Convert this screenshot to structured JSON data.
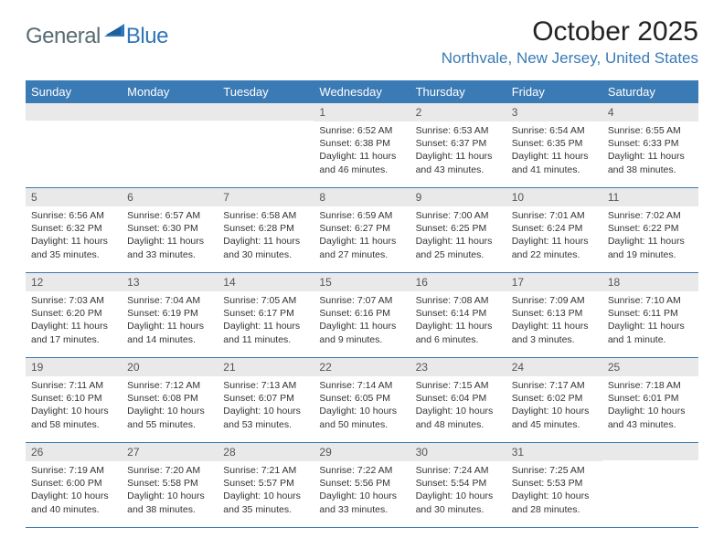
{
  "logo": {
    "general": "General",
    "blue": "Blue"
  },
  "title": "October 2025",
  "location": "Northvale, New Jersey, United States",
  "colors": {
    "header_bg": "#3a7ab5",
    "header_text": "#ffffff",
    "daynum_bg": "#e9e9e9",
    "location_text": "#3a7ab5",
    "body_text": "#333333",
    "border": "#3a7ab5"
  },
  "weekdays": [
    "Sunday",
    "Monday",
    "Tuesday",
    "Wednesday",
    "Thursday",
    "Friday",
    "Saturday"
  ],
  "weeks": [
    [
      null,
      null,
      null,
      {
        "n": "1",
        "sr": "6:52 AM",
        "ss": "6:38 PM",
        "dl": "11 hours and 46 minutes."
      },
      {
        "n": "2",
        "sr": "6:53 AM",
        "ss": "6:37 PM",
        "dl": "11 hours and 43 minutes."
      },
      {
        "n": "3",
        "sr": "6:54 AM",
        "ss": "6:35 PM",
        "dl": "11 hours and 41 minutes."
      },
      {
        "n": "4",
        "sr": "6:55 AM",
        "ss": "6:33 PM",
        "dl": "11 hours and 38 minutes."
      }
    ],
    [
      {
        "n": "5",
        "sr": "6:56 AM",
        "ss": "6:32 PM",
        "dl": "11 hours and 35 minutes."
      },
      {
        "n": "6",
        "sr": "6:57 AM",
        "ss": "6:30 PM",
        "dl": "11 hours and 33 minutes."
      },
      {
        "n": "7",
        "sr": "6:58 AM",
        "ss": "6:28 PM",
        "dl": "11 hours and 30 minutes."
      },
      {
        "n": "8",
        "sr": "6:59 AM",
        "ss": "6:27 PM",
        "dl": "11 hours and 27 minutes."
      },
      {
        "n": "9",
        "sr": "7:00 AM",
        "ss": "6:25 PM",
        "dl": "11 hours and 25 minutes."
      },
      {
        "n": "10",
        "sr": "7:01 AM",
        "ss": "6:24 PM",
        "dl": "11 hours and 22 minutes."
      },
      {
        "n": "11",
        "sr": "7:02 AM",
        "ss": "6:22 PM",
        "dl": "11 hours and 19 minutes."
      }
    ],
    [
      {
        "n": "12",
        "sr": "7:03 AM",
        "ss": "6:20 PM",
        "dl": "11 hours and 17 minutes."
      },
      {
        "n": "13",
        "sr": "7:04 AM",
        "ss": "6:19 PM",
        "dl": "11 hours and 14 minutes."
      },
      {
        "n": "14",
        "sr": "7:05 AM",
        "ss": "6:17 PM",
        "dl": "11 hours and 11 minutes."
      },
      {
        "n": "15",
        "sr": "7:07 AM",
        "ss": "6:16 PM",
        "dl": "11 hours and 9 minutes."
      },
      {
        "n": "16",
        "sr": "7:08 AM",
        "ss": "6:14 PM",
        "dl": "11 hours and 6 minutes."
      },
      {
        "n": "17",
        "sr": "7:09 AM",
        "ss": "6:13 PM",
        "dl": "11 hours and 3 minutes."
      },
      {
        "n": "18",
        "sr": "7:10 AM",
        "ss": "6:11 PM",
        "dl": "11 hours and 1 minute."
      }
    ],
    [
      {
        "n": "19",
        "sr": "7:11 AM",
        "ss": "6:10 PM",
        "dl": "10 hours and 58 minutes."
      },
      {
        "n": "20",
        "sr": "7:12 AM",
        "ss": "6:08 PM",
        "dl": "10 hours and 55 minutes."
      },
      {
        "n": "21",
        "sr": "7:13 AM",
        "ss": "6:07 PM",
        "dl": "10 hours and 53 minutes."
      },
      {
        "n": "22",
        "sr": "7:14 AM",
        "ss": "6:05 PM",
        "dl": "10 hours and 50 minutes."
      },
      {
        "n": "23",
        "sr": "7:15 AM",
        "ss": "6:04 PM",
        "dl": "10 hours and 48 minutes."
      },
      {
        "n": "24",
        "sr": "7:17 AM",
        "ss": "6:02 PM",
        "dl": "10 hours and 45 minutes."
      },
      {
        "n": "25",
        "sr": "7:18 AM",
        "ss": "6:01 PM",
        "dl": "10 hours and 43 minutes."
      }
    ],
    [
      {
        "n": "26",
        "sr": "7:19 AM",
        "ss": "6:00 PM",
        "dl": "10 hours and 40 minutes."
      },
      {
        "n": "27",
        "sr": "7:20 AM",
        "ss": "5:58 PM",
        "dl": "10 hours and 38 minutes."
      },
      {
        "n": "28",
        "sr": "7:21 AM",
        "ss": "5:57 PM",
        "dl": "10 hours and 35 minutes."
      },
      {
        "n": "29",
        "sr": "7:22 AM",
        "ss": "5:56 PM",
        "dl": "10 hours and 33 minutes."
      },
      {
        "n": "30",
        "sr": "7:24 AM",
        "ss": "5:54 PM",
        "dl": "10 hours and 30 minutes."
      },
      {
        "n": "31",
        "sr": "7:25 AM",
        "ss": "5:53 PM",
        "dl": "10 hours and 28 minutes."
      },
      null
    ]
  ],
  "labels": {
    "sunrise": "Sunrise:",
    "sunset": "Sunset:",
    "daylight": "Daylight:"
  }
}
